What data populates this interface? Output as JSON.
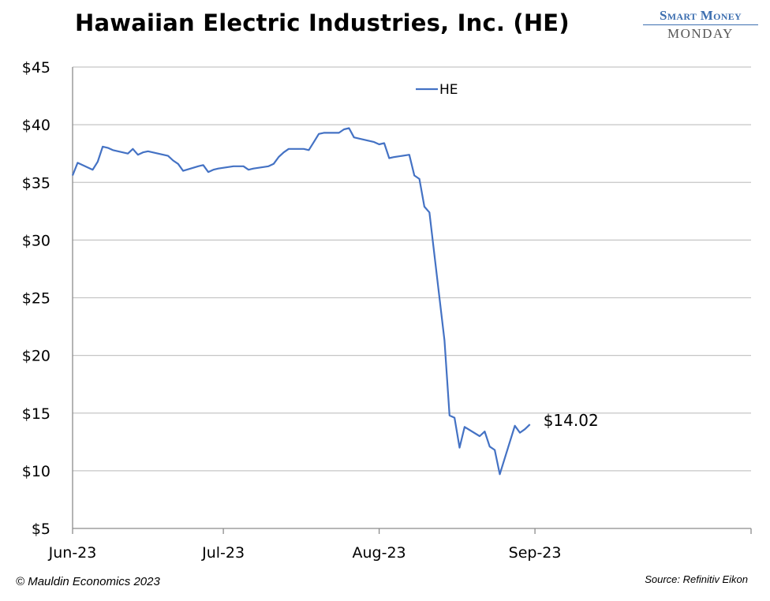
{
  "title": "Hawaiian Electric Industries, Inc. (HE)",
  "brand": {
    "line1": "Smart Money",
    "line2": "MONDAY"
  },
  "footer": {
    "left": "© Mauldin Economics 2023",
    "right": "Source: Refinitiv Eikon"
  },
  "chart_data": {
    "type": "line",
    "title": "Hawaiian Electric Industries, Inc. (HE)",
    "xlabel": "",
    "ylabel": "",
    "ylim": [
      5,
      45
    ],
    "yticks": [
      5,
      10,
      15,
      20,
      25,
      30,
      35,
      40,
      45
    ],
    "ytick_labels": [
      "$5",
      "$10",
      "$15",
      "$20",
      "$25",
      "$30",
      "$35",
      "$40",
      "$45"
    ],
    "xlim": [
      "2023-06-01",
      "2023-10-14"
    ],
    "xticks": [
      "2023-06-01",
      "2023-07-01",
      "2023-08-01",
      "2023-09-01"
    ],
    "xtick_labels": [
      "Jun-23",
      "Jul-23",
      "Aug-23",
      "Sep-23"
    ],
    "grid": true,
    "legend": "top-center",
    "line_color": "#4472c4",
    "end_label": "$14.02",
    "series": [
      {
        "name": "HE",
        "x": [
          "2023-06-01",
          "2023-06-02",
          "2023-06-05",
          "2023-06-06",
          "2023-06-07",
          "2023-06-08",
          "2023-06-09",
          "2023-06-12",
          "2023-06-13",
          "2023-06-14",
          "2023-06-15",
          "2023-06-16",
          "2023-06-20",
          "2023-06-21",
          "2023-06-22",
          "2023-06-23",
          "2023-06-26",
          "2023-06-27",
          "2023-06-28",
          "2023-06-29",
          "2023-06-30",
          "2023-07-03",
          "2023-07-05",
          "2023-07-06",
          "2023-07-07",
          "2023-07-10",
          "2023-07-11",
          "2023-07-12",
          "2023-07-13",
          "2023-07-14",
          "2023-07-17",
          "2023-07-18",
          "2023-07-19",
          "2023-07-20",
          "2023-07-21",
          "2023-07-24",
          "2023-07-25",
          "2023-07-26",
          "2023-07-27",
          "2023-07-28",
          "2023-07-31",
          "2023-08-01",
          "2023-08-02",
          "2023-08-03",
          "2023-08-04",
          "2023-08-07",
          "2023-08-08",
          "2023-08-09",
          "2023-08-10",
          "2023-08-11",
          "2023-08-14",
          "2023-08-15",
          "2023-08-16",
          "2023-08-17",
          "2023-08-18",
          "2023-08-21",
          "2023-08-22",
          "2023-08-23",
          "2023-08-24",
          "2023-08-25",
          "2023-08-28",
          "2023-08-29",
          "2023-08-30",
          "2023-08-31"
        ],
        "values": [
          35.6,
          36.7,
          36.1,
          36.8,
          38.1,
          38.0,
          37.8,
          37.5,
          37.9,
          37.4,
          37.6,
          37.7,
          37.3,
          36.9,
          36.6,
          36.0,
          36.4,
          36.5,
          35.9,
          36.1,
          36.2,
          36.4,
          36.4,
          36.1,
          36.2,
          36.4,
          36.6,
          37.2,
          37.6,
          37.9,
          37.9,
          37.8,
          38.5,
          39.2,
          39.3,
          39.3,
          39.6,
          39.7,
          38.9,
          38.8,
          38.5,
          38.3,
          38.4,
          37.1,
          37.2,
          37.4,
          35.6,
          35.3,
          32.9,
          32.4,
          21.3,
          14.8,
          14.6,
          12.0,
          13.8,
          13.0,
          13.4,
          12.1,
          11.8,
          9.7,
          13.9,
          13.3,
          13.6,
          14.02
        ]
      }
    ]
  }
}
